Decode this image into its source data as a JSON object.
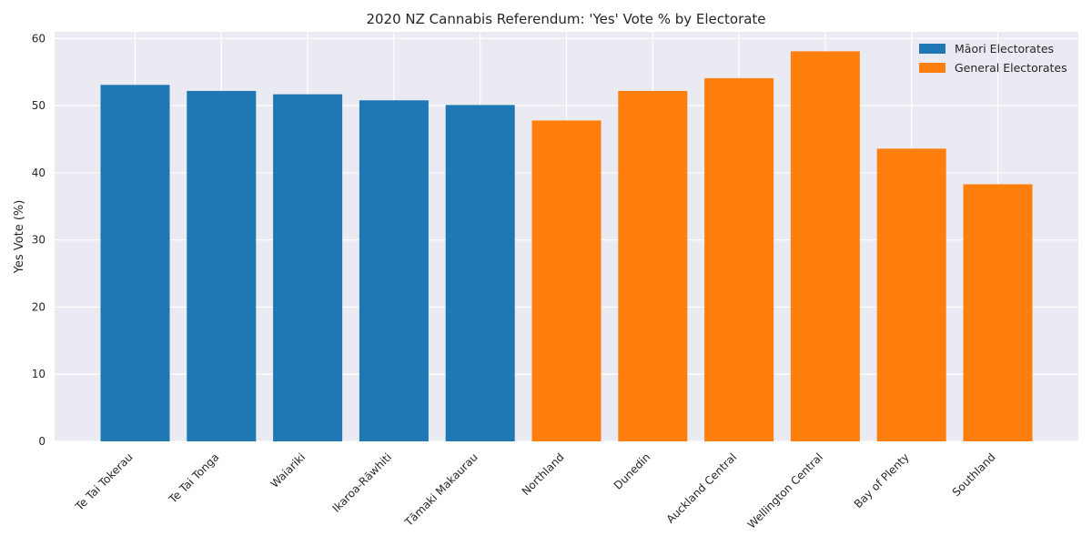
{
  "chart_data": {
    "type": "bar",
    "title": "2020 NZ Cannabis Referendum: 'Yes' Vote % by Electorate",
    "xlabel": "",
    "ylabel": "Yes Vote (%)",
    "ylim": [
      0,
      61
    ],
    "yticks": [
      0,
      10,
      20,
      30,
      40,
      50,
      60
    ],
    "grid": true,
    "legend_position": "top-right",
    "categories": [
      "Te Tai Tokerau",
      "Te Tai Tonga",
      "Waiariki",
      "Ikaroa-Rāwhiti",
      "Tāmaki Makaurau",
      "Northland",
      "Dunedin",
      "Auckland Central",
      "Wellington Central",
      "Bay of Plenty",
      "Southland"
    ],
    "series": [
      {
        "name": "Māori Electorates",
        "color": "#1f77b4",
        "values": [
          53.1,
          52.2,
          51.7,
          50.8,
          50.1,
          null,
          null,
          null,
          null,
          null,
          null
        ]
      },
      {
        "name": "General Electorates",
        "color": "#ff7f0e",
        "values": [
          null,
          null,
          null,
          null,
          null,
          47.8,
          52.2,
          54.1,
          58.1,
          43.6,
          38.3
        ]
      }
    ]
  }
}
